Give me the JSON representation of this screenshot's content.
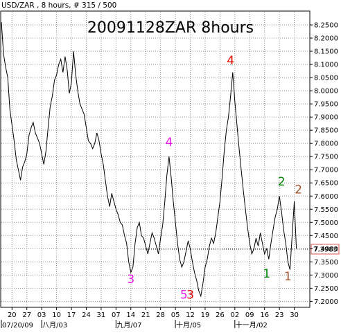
{
  "header": {
    "info": "USD/ZAR , 8 hours, # 315 / 500",
    "title": "20091128ZAR 8hours"
  },
  "colors": {
    "background": "#ffffff",
    "grid": "#8c8c8c",
    "price_line": "#000000",
    "current_box_border": "#d9534f",
    "wave_magenta": "#e619e6",
    "wave_red": "#e60000",
    "wave_green": "#008000",
    "wave_brown": "#a0522d"
  },
  "chart_data": {
    "type": "line",
    "title": "20091128ZAR 8hours",
    "symbol": "USD/ZAR",
    "timeframe": "8 hours",
    "ylim": [
      7.18,
      8.3
    ],
    "yticks": [
      8.25,
      8.2,
      8.15,
      8.1,
      8.05,
      8.0,
      7.95,
      7.9,
      7.85,
      7.8,
      7.75,
      7.7,
      7.65,
      7.6,
      7.55,
      7.5,
      7.45,
      7.4,
      7.35,
      7.3,
      7.25,
      7.2
    ],
    "ytick_labels": [
      "8.2500",
      "8.2000",
      "8.1500",
      "8.1000",
      "8.0500",
      "8.0000",
      "7.9500",
      "7.9000",
      "7.8500",
      "7.8000",
      "7.7500",
      "7.7000",
      "7.6500",
      "7.6000",
      "7.5500",
      "7.5000",
      "7.4500",
      "7.4000",
      "7.3500",
      "7.3000",
      "7.2500",
      "7.2000"
    ],
    "xlim": [
      0,
      145
    ],
    "xticks": [
      {
        "x": 5,
        "label": "20"
      },
      {
        "x": 12,
        "label": "27"
      },
      {
        "x": 19,
        "label": "03"
      },
      {
        "x": 26,
        "label": "10"
      },
      {
        "x": 33,
        "label": "17"
      },
      {
        "x": 40,
        "label": "24"
      },
      {
        "x": 47,
        "label": "31"
      },
      {
        "x": 54,
        "label": "07"
      },
      {
        "x": 61,
        "label": "14"
      },
      {
        "x": 68,
        "label": "21"
      },
      {
        "x": 75,
        "label": "28"
      },
      {
        "x": 82,
        "label": "05"
      },
      {
        "x": 89,
        "label": "12"
      },
      {
        "x": 96,
        "label": "19"
      },
      {
        "x": 103,
        "label": "26"
      },
      {
        "x": 110,
        "label": "02"
      },
      {
        "x": 117,
        "label": "09"
      },
      {
        "x": 124,
        "label": "16"
      },
      {
        "x": 131,
        "label": "23"
      },
      {
        "x": 138,
        "label": "30"
      }
    ],
    "date_labels": [
      {
        "x": 0,
        "label": "07/20/09"
      },
      {
        "x": 19,
        "label": "八月/03"
      },
      {
        "x": 54,
        "label": "九月/07"
      },
      {
        "x": 82,
        "label": "十月/05"
      },
      {
        "x": 110,
        "label": "十一月/02"
      }
    ],
    "current_price": 7.3983,
    "current_price_label": "7.3983",
    "series": [
      {
        "values": [
          [
            0,
            8.26
          ],
          [
            1,
            8.14
          ],
          [
            2,
            8.09
          ],
          [
            3,
            8.05
          ],
          [
            4,
            7.93
          ],
          [
            5,
            7.87
          ],
          [
            6,
            7.81
          ],
          [
            7,
            7.74
          ],
          [
            8,
            7.7
          ],
          [
            9,
            7.66
          ],
          [
            10,
            7.71
          ],
          [
            11,
            7.73
          ],
          [
            12,
            7.76
          ],
          [
            13,
            7.83
          ],
          [
            14,
            7.86
          ],
          [
            15,
            7.88
          ],
          [
            16,
            7.84
          ],
          [
            17,
            7.82
          ],
          [
            18,
            7.8
          ],
          [
            19,
            7.76
          ],
          [
            20,
            7.72
          ],
          [
            21,
            7.77
          ],
          [
            22,
            7.86
          ],
          [
            23,
            7.94
          ],
          [
            24,
            7.98
          ],
          [
            25,
            8.04
          ],
          [
            26,
            8.06
          ],
          [
            27,
            8.1
          ],
          [
            28,
            8.12
          ],
          [
            29,
            8.07
          ],
          [
            30,
            8.13
          ],
          [
            31,
            8.08
          ],
          [
            32,
            7.99
          ],
          [
            33,
            8.03
          ],
          [
            34,
            8.15
          ],
          [
            35,
            8.06
          ],
          [
            36,
            8.0
          ],
          [
            37,
            7.95
          ],
          [
            38,
            7.93
          ],
          [
            39,
            7.91
          ],
          [
            40,
            7.86
          ],
          [
            41,
            7.81
          ],
          [
            42,
            7.8
          ],
          [
            43,
            7.78
          ],
          [
            44,
            7.8
          ],
          [
            45,
            7.84
          ],
          [
            46,
            7.81
          ],
          [
            47,
            7.76
          ],
          [
            48,
            7.72
          ],
          [
            49,
            7.66
          ],
          [
            50,
            7.6
          ],
          [
            51,
            7.56
          ],
          [
            52,
            7.61
          ],
          [
            53,
            7.58
          ],
          [
            54,
            7.55
          ],
          [
            55,
            7.53
          ],
          [
            56,
            7.5
          ],
          [
            57,
            7.49
          ],
          [
            58,
            7.45
          ],
          [
            59,
            7.42
          ],
          [
            60,
            7.35
          ],
          [
            61,
            7.31
          ],
          [
            62,
            7.33
          ],
          [
            63,
            7.42
          ],
          [
            64,
            7.48
          ],
          [
            65,
            7.5
          ],
          [
            66,
            7.45
          ],
          [
            67,
            7.44
          ],
          [
            68,
            7.41
          ],
          [
            69,
            7.38
          ],
          [
            70,
            7.42
          ],
          [
            71,
            7.46
          ],
          [
            72,
            7.44
          ],
          [
            73,
            7.41
          ],
          [
            74,
            7.38
          ],
          [
            75,
            7.44
          ],
          [
            76,
            7.49
          ],
          [
            77,
            7.58
          ],
          [
            78,
            7.68
          ],
          [
            79,
            7.75
          ],
          [
            80,
            7.67
          ],
          [
            81,
            7.58
          ],
          [
            82,
            7.5
          ],
          [
            83,
            7.42
          ],
          [
            84,
            7.36
          ],
          [
            85,
            7.33
          ],
          [
            86,
            7.35
          ],
          [
            87,
            7.39
          ],
          [
            88,
            7.43
          ],
          [
            89,
            7.4
          ],
          [
            90,
            7.35
          ],
          [
            91,
            7.31
          ],
          [
            92,
            7.28
          ],
          [
            93,
            7.24
          ],
          [
            94,
            7.22
          ],
          [
            95,
            7.27
          ],
          [
            96,
            7.33
          ],
          [
            97,
            7.36
          ],
          [
            98,
            7.41
          ],
          [
            99,
            7.44
          ],
          [
            100,
            7.42
          ],
          [
            101,
            7.46
          ],
          [
            102,
            7.52
          ],
          [
            103,
            7.58
          ],
          [
            104,
            7.67
          ],
          [
            105,
            7.77
          ],
          [
            106,
            7.85
          ],
          [
            107,
            7.9
          ],
          [
            108,
            7.98
          ],
          [
            109,
            8.07
          ],
          [
            110,
            7.96
          ],
          [
            111,
            7.87
          ],
          [
            112,
            7.78
          ],
          [
            113,
            7.7
          ],
          [
            114,
            7.62
          ],
          [
            115,
            7.55
          ],
          [
            116,
            7.48
          ],
          [
            117,
            7.42
          ],
          [
            118,
            7.38
          ],
          [
            119,
            7.4
          ],
          [
            120,
            7.44
          ],
          [
            121,
            7.41
          ],
          [
            122,
            7.46
          ],
          [
            123,
            7.42
          ],
          [
            124,
            7.38
          ],
          [
            125,
            7.4
          ],
          [
            126,
            7.36
          ],
          [
            127,
            7.42
          ],
          [
            128,
            7.47
          ],
          [
            129,
            7.52
          ],
          [
            130,
            7.55
          ],
          [
            131,
            7.6
          ],
          [
            132,
            7.54
          ],
          [
            133,
            7.47
          ],
          [
            134,
            7.42
          ],
          [
            135,
            7.35
          ],
          [
            136,
            7.32
          ],
          [
            137,
            7.45
          ],
          [
            138,
            7.58
          ],
          [
            139,
            7.4
          ]
        ]
      }
    ],
    "annotations": [
      {
        "text": "3",
        "x": 61,
        "y": 7.27,
        "color": "wave_magenta"
      },
      {
        "text": "4",
        "x": 79,
        "y": 7.79,
        "color": "wave_magenta"
      },
      {
        "text": "5",
        "x": 86,
        "y": 7.21,
        "color": "wave_magenta"
      },
      {
        "text": "3",
        "x": 89,
        "y": 7.21,
        "color": "wave_red"
      },
      {
        "text": "4",
        "x": 108,
        "y": 8.1,
        "color": "wave_red"
      },
      {
        "text": "1",
        "x": 125,
        "y": 7.29,
        "color": "wave_green"
      },
      {
        "text": "2",
        "x": 132,
        "y": 7.64,
        "color": "wave_green"
      },
      {
        "text": "1",
        "x": 135,
        "y": 7.28,
        "color": "wave_brown"
      },
      {
        "text": "2",
        "x": 140,
        "y": 7.61,
        "color": "wave_brown"
      }
    ],
    "grid": true,
    "legend": "none"
  }
}
